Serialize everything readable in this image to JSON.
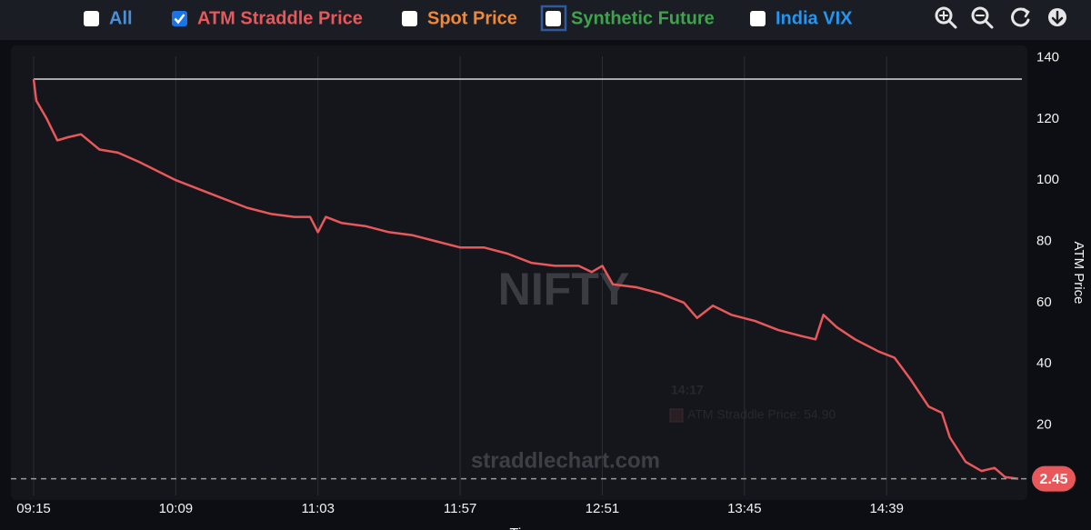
{
  "chart_data": {
    "type": "line",
    "legend_options": [
      {
        "name": "All",
        "color": "#4a90d9",
        "checked": false
      },
      {
        "name": "Spot Price",
        "color": "#f0883a",
        "checked": false
      },
      {
        "name": "Synthetic Future",
        "color": "#3fa34d",
        "checked": false,
        "focused": true
      },
      {
        "name": "India VIX",
        "color": "#2196f3",
        "checked": false
      }
    ],
    "x": [
      "09:15",
      "09:16",
      "09:20",
      "09:24",
      "09:28",
      "09:33",
      "09:40",
      "09:47",
      "09:55",
      "10:02",
      "10:09",
      "10:18",
      "10:27",
      "10:36",
      "10:45",
      "10:54",
      "11:00",
      "11:03",
      "11:06",
      "11:12",
      "11:21",
      "11:30",
      "11:39",
      "11:48",
      "11:57",
      "12:06",
      "12:15",
      "12:24",
      "12:33",
      "12:42",
      "12:47",
      "12:51",
      "12:55",
      "13:04",
      "13:13",
      "13:22",
      "13:27",
      "13:33",
      "13:40",
      "13:49",
      "13:58",
      "14:07",
      "14:12",
      "14:15",
      "14:20",
      "14:27",
      "14:36",
      "14:42",
      "14:48",
      "14:55",
      "15:00",
      "15:03",
      "15:09",
      "15:15",
      "15:20",
      "15:24",
      "15:29"
    ],
    "series": [
      {
        "name": "ATM Straddle Price",
        "color": "#e8575a",
        "checked": true,
        "values": [
          133,
          126,
          120,
          113,
          114,
          115,
          110,
          109,
          106,
          103,
          100,
          97,
          94,
          91,
          89,
          88,
          88,
          83,
          88,
          86,
          85,
          83,
          82,
          80,
          78,
          78,
          76,
          73,
          72,
          72,
          70,
          72,
          66,
          65,
          63,
          60,
          55,
          59,
          56,
          54,
          51,
          49,
          48,
          56,
          52,
          48,
          44,
          42,
          35,
          26,
          24,
          16,
          8,
          5,
          6,
          3,
          2.45
        ]
      }
    ],
    "reference_line": 133,
    "xlim": [
      "09:15",
      "15:29"
    ],
    "xticks": [
      "09:15",
      "10:09",
      "11:03",
      "11:57",
      "12:51",
      "13:45",
      "14:39"
    ],
    "ylim": [
      -3,
      144
    ],
    "yticks": [
      20,
      40,
      60,
      80,
      100,
      120,
      140
    ],
    "y_axis_label": "ATM Price",
    "x_axis_label": "Time",
    "grid": "x",
    "watermark": "NIFTY",
    "site": "straddlechart.com",
    "tooltip": {
      "time": "14:17",
      "text": "ATM Straddle Price: 54.90"
    }
  }
}
